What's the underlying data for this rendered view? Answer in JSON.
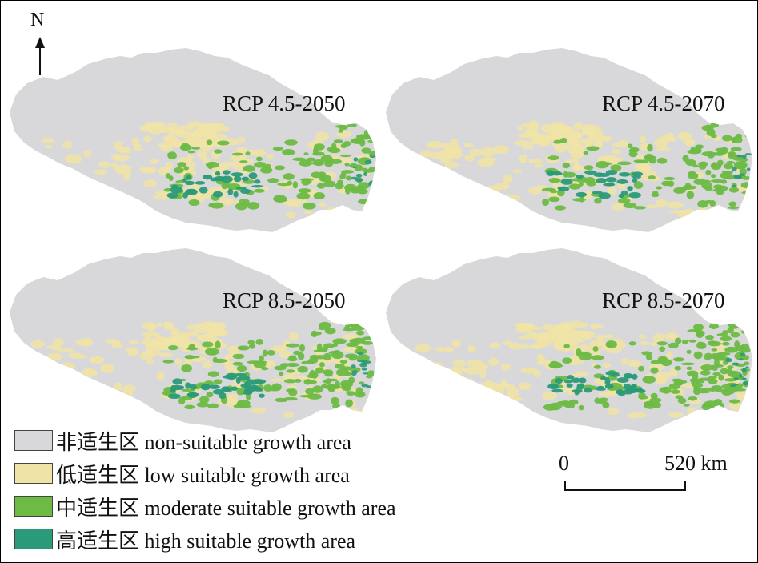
{
  "north": {
    "label": "N"
  },
  "panels": [
    {
      "title": "RCP 4.5-2050"
    },
    {
      "title": "RCP 4.5-2070"
    },
    {
      "title": "RCP 8.5-2050"
    },
    {
      "title": "RCP 8.5-2070"
    }
  ],
  "legend": [
    {
      "label": "非适生区 non-suitable growth area",
      "color": "#d8d8da"
    },
    {
      "label": "低适生区 low suitable growth area",
      "color": "#efe3a6"
    },
    {
      "label": "中适生区 moderate suitable growth area",
      "color": "#6dbb45"
    },
    {
      "label": "高适生区 high suitable growth area",
      "color": "#2a9a78"
    }
  ],
  "scale_bar": {
    "start_label": "0",
    "end_label": "520 km"
  }
}
